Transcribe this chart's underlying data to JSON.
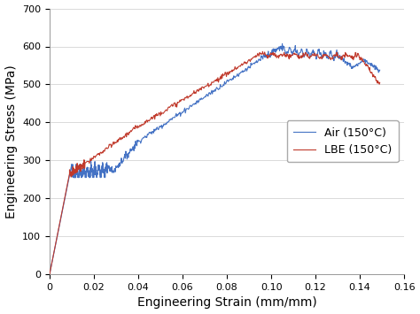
{
  "title": "",
  "xlabel": "Engineering Strain (mm/mm)",
  "ylabel": "Engineering Stress (MPa)",
  "xlim": [
    0,
    0.16
  ],
  "ylim": [
    0,
    700
  ],
  "xticks": [
    0,
    0.02,
    0.04,
    0.06,
    0.08,
    0.1,
    0.12,
    0.14,
    0.16
  ],
  "yticks": [
    0,
    100,
    200,
    300,
    400,
    500,
    600,
    700
  ],
  "air_color": "#4472C4",
  "lbe_color": "#C0392B",
  "air_label": "Air (150°C)",
  "lbe_label": "LBE (150°C)",
  "line_width": 0.8,
  "legend_loc": "center right",
  "grid": true,
  "grid_color": "#CCCCCC",
  "background_color": "#FFFFFF",
  "font_size_labels": 10,
  "font_size_ticks": 8,
  "font_size_legend": 9
}
